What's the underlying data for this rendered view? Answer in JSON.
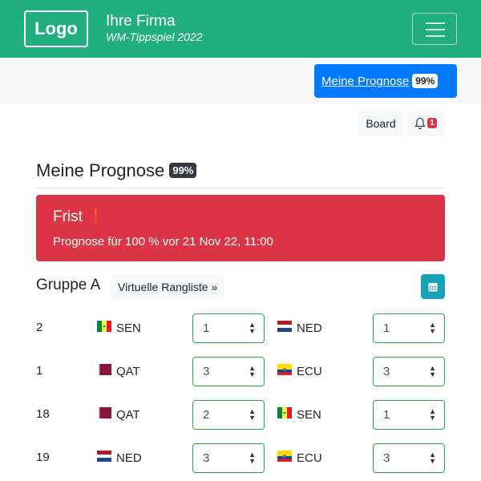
{
  "header": {
    "logo": "Logo",
    "company": "Ihre Firma",
    "subtitle": "WM-Tippspiel 2022"
  },
  "subnav": {
    "prognose_label": "Meine Prognose",
    "prognose_badge": "99%"
  },
  "toolbar": {
    "board_label": "Board",
    "notification_count": "1"
  },
  "main": {
    "title": "Meine Prognose",
    "title_badge": "99%",
    "alert": {
      "title": "Frist",
      "icon": "exclamation-icon",
      "text": "Prognose für 100 % vor 21 Nov 22, 11:00",
      "color": "#dc3545"
    },
    "group": {
      "title": "Gruppe A",
      "ranking_button": "Virtuelle Rangliste »"
    },
    "matches": [
      {
        "number": "2",
        "home": "SEN",
        "home_score": "1",
        "away": "NED",
        "away_score": "1"
      },
      {
        "number": "1",
        "home": "QAT",
        "home_score": "3",
        "away": "ECU",
        "away_score": "3"
      },
      {
        "number": "18",
        "home": "QAT",
        "home_score": "2",
        "away": "SEN",
        "away_score": "1"
      },
      {
        "number": "19",
        "home": "NED",
        "home_score": "3",
        "away": "ECU",
        "away_score": "3"
      }
    ]
  },
  "colors": {
    "brand": "#21ae80",
    "primary": "#007bff",
    "danger": "#dc3545",
    "info": "#17a2b8",
    "select_border": "#28a745"
  }
}
